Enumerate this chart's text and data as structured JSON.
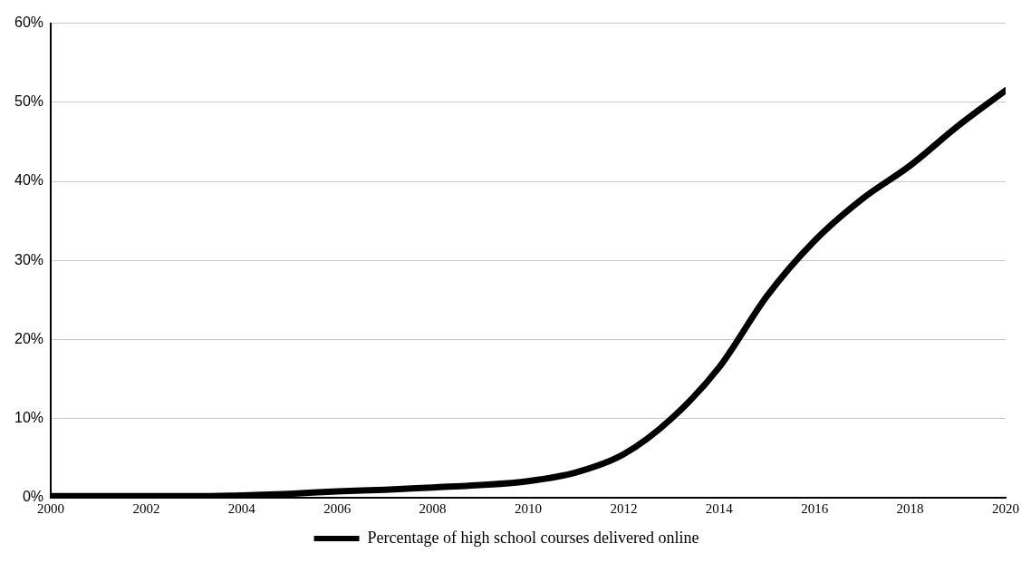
{
  "chart_data": {
    "type": "line",
    "x": [
      2000,
      2001,
      2002,
      2003,
      2004,
      2005,
      2006,
      2007,
      2008,
      2009,
      2010,
      2011,
      2012,
      2013,
      2014,
      2015,
      2016,
      2017,
      2018,
      2019,
      2020
    ],
    "series": [
      {
        "name": "Percentage of high school courses delivered online",
        "color": "#000000",
        "values": [
          0.2,
          0.2,
          0.2,
          0.2,
          0.3,
          0.5,
          0.8,
          1.0,
          1.3,
          1.6,
          2.1,
          3.2,
          5.5,
          10,
          16.5,
          25.5,
          32.5,
          37.8,
          42,
          47,
          51.5
        ]
      }
    ],
    "xlim": [
      2000,
      2020
    ],
    "xticks": [
      2000,
      2002,
      2004,
      2006,
      2008,
      2010,
      2012,
      2014,
      2016,
      2018,
      2020
    ],
    "ylim": [
      0,
      60
    ],
    "yticks": [
      {
        "value": 0,
        "label": "0%"
      },
      {
        "value": 10,
        "label": "10%"
      },
      {
        "value": 20,
        "label": "20%"
      },
      {
        "value": 30,
        "label": "30%"
      },
      {
        "value": 40,
        "label": "40%"
      },
      {
        "value": 50,
        "label": "50%"
      },
      {
        "value": 60,
        "label": "60%"
      }
    ],
    "grid": "y",
    "legend": "bottom",
    "marker": "none",
    "line_style": "solid"
  }
}
